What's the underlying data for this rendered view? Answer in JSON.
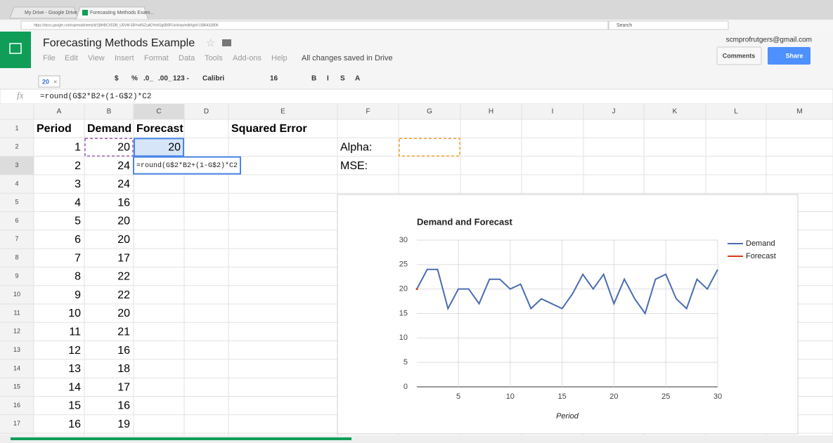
{
  "browser": {
    "tabs": [
      "My Drive - Google Drive",
      "Forecasting Methods Exam..."
    ],
    "url": "https://docs.google.com/spreadsheets/d/1BHBCX5DB_U5VM-5BYw8SZuADYo6Sg0B0FUvIxIxp/edit#gid=1586432806",
    "search": "Search"
  },
  "header": {
    "title": "Forecasting Methods Example",
    "menu": [
      "File",
      "Edit",
      "View",
      "Insert",
      "Format",
      "Data",
      "Tools",
      "Add-ons",
      "Help"
    ],
    "status": "All changes saved in Drive",
    "account": "scmprofrutgers@gmail.com",
    "comments": "Comments",
    "share": "Share"
  },
  "toolbar": {
    "items": [
      "$",
      "%",
      ".0_",
      ".00_",
      "123 -",
      "Calibri",
      "16",
      "B",
      "I",
      "S",
      "A"
    ],
    "tooltip": "20"
  },
  "formula_bar": {
    "label": "fx",
    "formula": "=round(G$2*B2+(1-G$2)*C2"
  },
  "sheet": {
    "columns": [
      "A",
      "B",
      "C",
      "D",
      "E",
      "F",
      "G",
      "H",
      "I",
      "J",
      "K",
      "L",
      "M"
    ],
    "row_headers": [
      1,
      2,
      3,
      4,
      5,
      6,
      7,
      8,
      9,
      10,
      11,
      12,
      13,
      14,
      15,
      16,
      17
    ],
    "rows": [
      {
        "A": "Period",
        "B": "Demand",
        "C": "Forecast",
        "E": "Squared Error"
      },
      {
        "A": 1,
        "B": 20,
        "C": 20,
        "F": "Alpha:"
      },
      {
        "A": 2,
        "B": 24,
        "F": "MSE:"
      },
      {
        "A": 3,
        "B": 24
      },
      {
        "A": 4,
        "B": 16
      },
      {
        "A": 5,
        "B": 20
      },
      {
        "A": 6,
        "B": 20
      },
      {
        "A": 7,
        "B": 17
      },
      {
        "A": 8,
        "B": 22
      },
      {
        "A": 9,
        "B": 22
      },
      {
        "A": 10,
        "B": 20
      },
      {
        "A": 11,
        "B": 21
      },
      {
        "A": 12,
        "B": 16
      },
      {
        "A": 13,
        "B": 18
      },
      {
        "A": 14,
        "B": 17
      },
      {
        "A": 15,
        "B": 16
      },
      {
        "A": 16,
        "B": 19
      }
    ],
    "editor": "=round(G$2*B2+(1-G$2)*C2"
  },
  "chart_data": {
    "type": "line",
    "title": "Demand and Forecast",
    "x_label": "Period",
    "x": [
      1,
      2,
      3,
      4,
      5,
      6,
      7,
      8,
      9,
      10,
      11,
      12,
      13,
      14,
      15,
      16,
      17,
      18,
      19,
      20,
      21,
      22,
      23,
      24,
      25,
      26,
      27,
      28,
      29,
      30
    ],
    "series": [
      {
        "name": "Demand",
        "color": "#4a6cb3",
        "values": [
          20,
          24,
          24,
          16,
          20,
          20,
          17,
          22,
          22,
          20,
          21,
          16,
          18,
          17,
          16,
          19,
          23,
          20,
          23,
          17,
          22,
          18,
          15,
          22,
          23,
          18,
          16,
          22,
          20,
          24
        ]
      },
      {
        "name": "Forecast",
        "color": "#dc3912",
        "values": [
          20,
          null,
          null,
          null,
          null,
          null,
          null,
          null,
          null,
          null,
          null,
          null,
          null,
          null,
          null,
          null,
          null,
          null,
          null,
          null,
          null,
          null,
          null,
          null,
          null,
          null,
          null,
          null,
          null,
          null
        ]
      }
    ],
    "xlim": [
      1,
      30
    ],
    "xticks": [
      5,
      10,
      15,
      20,
      25,
      30
    ],
    "ylim": [
      0,
      30
    ],
    "yticks": [
      0,
      5,
      10,
      15,
      20,
      25,
      30
    ],
    "grid": true,
    "legend": "right"
  }
}
